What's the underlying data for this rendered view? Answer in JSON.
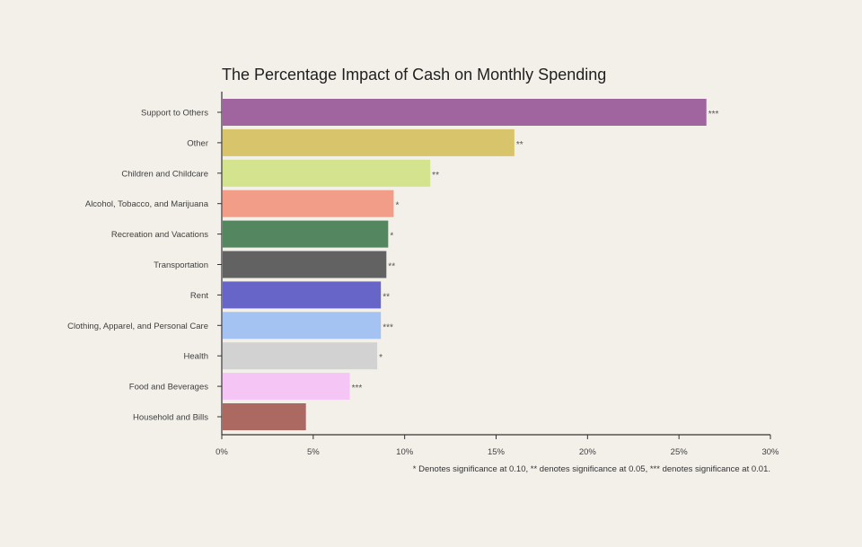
{
  "chart_data": {
    "type": "bar",
    "orientation": "horizontal",
    "title": "The Percentage Impact of Cash on Monthly Spending",
    "xlabel": "",
    "ylabel": "",
    "xlim": [
      0,
      30
    ],
    "x_ticks": [
      0,
      5,
      10,
      15,
      20,
      25,
      30
    ],
    "x_tick_labels": [
      "0%",
      "5%",
      "10%",
      "15%",
      "20%",
      "25%",
      "30%"
    ],
    "grid": false,
    "categories": [
      "Support to Others",
      "Other",
      "Children and Childcare",
      "Alcohol, Tobacco, and Marijuana",
      "Recreation and Vacations",
      "Transportation",
      "Rent",
      "Clothing, Apparel, and Personal Care",
      "Health",
      "Food and Beverages",
      "Household and Bills"
    ],
    "values": [
      26.5,
      16.0,
      11.4,
      9.4,
      9.1,
      9.0,
      8.7,
      8.7,
      8.5,
      7.0,
      4.6
    ],
    "significance": [
      "***",
      "**",
      "**",
      "*",
      "*",
      "**",
      "**",
      "***",
      "*",
      "***",
      ""
    ],
    "colors": [
      "#a0649f",
      "#d8c56b",
      "#d3e38e",
      "#f19d88",
      "#54875f",
      "#626262",
      "#6766c8",
      "#a4c2f2",
      "#d2d2d2",
      "#f4c5f5",
      "#ab6961"
    ],
    "footnote": "* Denotes significance at 0.10, ** denotes significance at 0.05, *** denotes significance at 0.01."
  }
}
